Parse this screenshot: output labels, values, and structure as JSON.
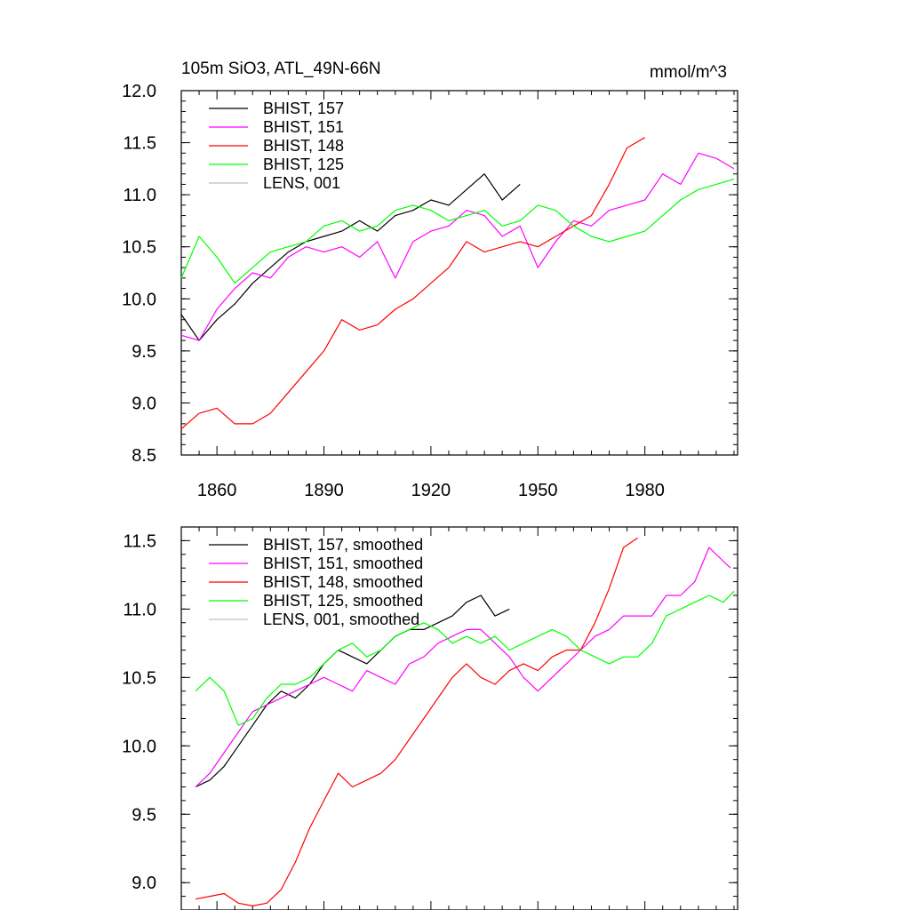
{
  "chart_data": [
    {
      "type": "line",
      "title": "105m SiO3, ATL_49N-66N",
      "units": "mmol/m^3",
      "xlim": [
        1850,
        2006
      ],
      "ylim": [
        8.5,
        12.0
      ],
      "x_ticks": [
        1860,
        1890,
        1920,
        1950,
        1980
      ],
      "y_ticks": [
        "8.5",
        "9.0",
        "9.5",
        "10.0",
        "10.5",
        "11.0",
        "11.5",
        "12.0"
      ],
      "legend": [
        {
          "label": "BHIST, 157",
          "color": "#000000"
        },
        {
          "label": "BHIST, 151",
          "color": "#ff00ff"
        },
        {
          "label": "BHIST, 148",
          "color": "#ff0000"
        },
        {
          "label": "BHIST, 125",
          "color": "#00ff00"
        },
        {
          "label": "LENS, 001",
          "color": "#bfbfbf"
        }
      ],
      "series": [
        {
          "name": "BHIST, 157",
          "color": "#000000",
          "x": [
            1850,
            1855,
            1860,
            1865,
            1870,
            1875,
            1880,
            1885,
            1890,
            1895,
            1900,
            1905,
            1910,
            1915,
            1920,
            1925,
            1930,
            1935,
            1940,
            1945
          ],
          "y": [
            9.85,
            9.6,
            9.8,
            9.95,
            10.15,
            10.3,
            10.45,
            10.55,
            10.6,
            10.65,
            10.75,
            10.65,
            10.8,
            10.85,
            10.95,
            10.9,
            11.05,
            11.2,
            10.95,
            11.1
          ]
        },
        {
          "name": "BHIST, 151",
          "color": "#ff00ff",
          "x": [
            1850,
            1855,
            1860,
            1865,
            1870,
            1875,
            1880,
            1885,
            1890,
            1895,
            1900,
            1905,
            1910,
            1915,
            1920,
            1925,
            1930,
            1935,
            1940,
            1945,
            1950,
            1955,
            1960,
            1965,
            1970,
            1975,
            1980,
            1985,
            1990,
            1995,
            2000,
            2005
          ],
          "y": [
            9.65,
            9.6,
            9.9,
            10.1,
            10.25,
            10.2,
            10.4,
            10.5,
            10.45,
            10.5,
            10.4,
            10.55,
            10.2,
            10.55,
            10.65,
            10.7,
            10.85,
            10.8,
            10.6,
            10.7,
            10.3,
            10.55,
            10.75,
            10.7,
            10.85,
            10.9,
            10.95,
            11.2,
            11.1,
            11.4,
            11.35,
            11.25
          ]
        },
        {
          "name": "BHIST, 148",
          "color": "#ff0000",
          "x": [
            1850,
            1855,
            1860,
            1865,
            1870,
            1875,
            1880,
            1885,
            1890,
            1895,
            1900,
            1905,
            1910,
            1915,
            1920,
            1925,
            1930,
            1935,
            1940,
            1945,
            1950,
            1955,
            1960,
            1965,
            1970,
            1975,
            1980
          ],
          "y": [
            8.75,
            8.9,
            8.95,
            8.8,
            8.8,
            8.9,
            9.1,
            9.3,
            9.5,
            9.8,
            9.7,
            9.75,
            9.9,
            10.0,
            10.15,
            10.3,
            10.55,
            10.45,
            10.5,
            10.55,
            10.5,
            10.6,
            10.7,
            10.8,
            11.1,
            11.45,
            11.55
          ]
        },
        {
          "name": "BHIST, 125",
          "color": "#00ff00",
          "x": [
            1850,
            1855,
            1860,
            1865,
            1870,
            1875,
            1880,
            1885,
            1890,
            1895,
            1900,
            1905,
            1910,
            1915,
            1920,
            1925,
            1930,
            1935,
            1940,
            1945,
            1950,
            1955,
            1960,
            1965,
            1970,
            1975,
            1980,
            1985,
            1990,
            1995,
            2000,
            2005
          ],
          "y": [
            10.2,
            10.6,
            10.4,
            10.15,
            10.3,
            10.45,
            10.5,
            10.55,
            10.7,
            10.75,
            10.65,
            10.7,
            10.85,
            10.9,
            10.85,
            10.75,
            10.8,
            10.85,
            10.7,
            10.75,
            10.9,
            10.85,
            10.7,
            10.6,
            10.55,
            10.6,
            10.65,
            10.8,
            10.95,
            11.05,
            11.1,
            11.15
          ]
        }
      ]
    },
    {
      "type": "line",
      "xlim": [
        1850,
        2006
      ],
      "ylim": [
        8.8,
        11.6
      ],
      "y_ticks": [
        "9.0",
        "9.5",
        "10.0",
        "10.5",
        "11.0",
        "11.5"
      ],
      "legend": [
        {
          "label": "BHIST, 157, smoothed",
          "color": "#000000"
        },
        {
          "label": "BHIST, 151, smoothed",
          "color": "#ff00ff"
        },
        {
          "label": "BHIST, 148, smoothed",
          "color": "#ff0000"
        },
        {
          "label": "BHIST, 125, smoothed",
          "color": "#00ff00"
        },
        {
          "label": "LENS, 001, smoothed",
          "color": "#bfbfbf"
        }
      ],
      "series": [
        {
          "name": "BHIST, 157, smoothed",
          "color": "#000000",
          "x": [
            1854,
            1858,
            1862,
            1866,
            1870,
            1874,
            1878,
            1882,
            1886,
            1890,
            1894,
            1898,
            1902,
            1906,
            1910,
            1914,
            1918,
            1922,
            1926,
            1930,
            1934,
            1938,
            1942
          ],
          "y": [
            9.7,
            9.75,
            9.85,
            10.0,
            10.15,
            10.3,
            10.4,
            10.35,
            10.45,
            10.6,
            10.7,
            10.65,
            10.6,
            10.7,
            10.8,
            10.85,
            10.85,
            10.9,
            10.95,
            11.05,
            11.1,
            10.95,
            11.0
          ]
        },
        {
          "name": "BHIST, 151, smoothed",
          "color": "#ff00ff",
          "x": [
            1854,
            1858,
            1862,
            1866,
            1870,
            1874,
            1878,
            1882,
            1886,
            1890,
            1894,
            1898,
            1902,
            1906,
            1910,
            1914,
            1918,
            1922,
            1926,
            1930,
            1934,
            1938,
            1942,
            1946,
            1950,
            1954,
            1958,
            1962,
            1966,
            1970,
            1974,
            1978,
            1982,
            1986,
            1990,
            1994,
            1998,
            2002,
            2004
          ],
          "y": [
            9.7,
            9.8,
            9.95,
            10.1,
            10.25,
            10.3,
            10.35,
            10.4,
            10.45,
            10.5,
            10.45,
            10.4,
            10.55,
            10.5,
            10.45,
            10.6,
            10.65,
            10.75,
            10.8,
            10.85,
            10.85,
            10.75,
            10.65,
            10.5,
            10.4,
            10.5,
            10.6,
            10.7,
            10.8,
            10.85,
            10.95,
            10.95,
            10.95,
            11.1,
            11.1,
            11.2,
            11.45,
            11.35,
            11.3
          ]
        },
        {
          "name": "BHIST, 148, smoothed",
          "color": "#ff0000",
          "x": [
            1854,
            1858,
            1862,
            1866,
            1870,
            1874,
            1878,
            1882,
            1886,
            1890,
            1894,
            1898,
            1902,
            1906,
            1910,
            1914,
            1918,
            1922,
            1926,
            1930,
            1934,
            1938,
            1942,
            1946,
            1950,
            1954,
            1958,
            1962,
            1966,
            1970,
            1974,
            1978
          ],
          "y": [
            8.88,
            8.9,
            8.92,
            8.85,
            8.83,
            8.85,
            8.95,
            9.15,
            9.4,
            9.6,
            9.8,
            9.7,
            9.75,
            9.8,
            9.9,
            10.05,
            10.2,
            10.35,
            10.5,
            10.6,
            10.5,
            10.45,
            10.55,
            10.6,
            10.55,
            10.65,
            10.7,
            10.7,
            10.9,
            11.15,
            11.45,
            11.52
          ]
        },
        {
          "name": "BHIST, 125, smoothed",
          "color": "#00ff00",
          "x": [
            1854,
            1858,
            1862,
            1866,
            1870,
            1874,
            1878,
            1882,
            1886,
            1890,
            1894,
            1898,
            1902,
            1906,
            1910,
            1914,
            1918,
            1922,
            1926,
            1930,
            1934,
            1938,
            1942,
            1946,
            1950,
            1954,
            1958,
            1962,
            1966,
            1970,
            1974,
            1978,
            1982,
            1986,
            1990,
            1994,
            1998,
            2002,
            2005
          ],
          "y": [
            10.4,
            10.5,
            10.4,
            10.15,
            10.2,
            10.35,
            10.45,
            10.45,
            10.5,
            10.6,
            10.7,
            10.75,
            10.65,
            10.7,
            10.8,
            10.85,
            10.9,
            10.85,
            10.75,
            10.8,
            10.75,
            10.8,
            10.7,
            10.75,
            10.8,
            10.85,
            10.8,
            10.7,
            10.65,
            10.6,
            10.65,
            10.65,
            10.75,
            10.95,
            11.0,
            11.05,
            11.1,
            11.05,
            11.13
          ]
        }
      ]
    }
  ]
}
